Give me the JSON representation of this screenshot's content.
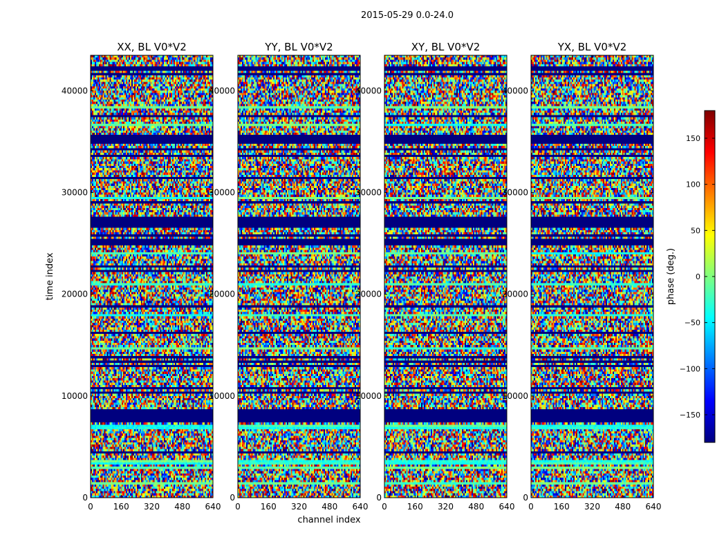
{
  "figure": {
    "suptitle": "2015-05-29 0.0-24.0",
    "xlabel": "channel index",
    "ylabel": "time index"
  },
  "colorbar": {
    "label": "phase (deg.)",
    "colormap": "jet",
    "range": [
      -180,
      180
    ],
    "ticks": [
      150,
      100,
      50,
      0,
      -50,
      -100,
      -150
    ],
    "tick_labels": [
      "150",
      "100",
      "50",
      "0",
      "−50",
      "−100",
      "−150"
    ],
    "jet_colors": [
      "#00007f",
      "#0000ff",
      "#007fff",
      "#00ffff",
      "#7fff7f",
      "#ffff00",
      "#ff7f00",
      "#ff0000",
      "#7f0000"
    ]
  },
  "chart_data": [
    {
      "type": "heatmap",
      "title": "XX, BL V0*V2",
      "xlim": [
        0,
        640
      ],
      "ylim": [
        0,
        43500
      ],
      "xticks": [
        0,
        160,
        320,
        480,
        640
      ],
      "yticks": [
        0,
        10000,
        20000,
        30000,
        40000
      ],
      "z": "phase (deg.)",
      "zlim": [
        -180,
        180
      ]
    },
    {
      "type": "heatmap",
      "title": "YY, BL V0*V2",
      "xlim": [
        0,
        640
      ],
      "ylim": [
        0,
        43500
      ],
      "xticks": [
        0,
        160,
        320,
        480,
        640
      ],
      "yticks": [
        0,
        10000,
        20000,
        30000,
        40000
      ],
      "z": "phase (deg.)",
      "zlim": [
        -180,
        180
      ]
    },
    {
      "type": "heatmap",
      "title": "XY, BL V0*V2",
      "xlim": [
        0,
        640
      ],
      "ylim": [
        0,
        43500
      ],
      "xticks": [
        0,
        160,
        320,
        480,
        640
      ],
      "yticks": [
        0,
        10000,
        20000,
        30000,
        40000
      ],
      "z": "phase (deg.)",
      "zlim": [
        -180,
        180
      ]
    },
    {
      "type": "heatmap",
      "title": "YX, BL V0*V2",
      "xlim": [
        0,
        640
      ],
      "ylim": [
        0,
        43500
      ],
      "xticks": [
        0,
        160,
        320,
        480,
        640
      ],
      "yticks": [
        0,
        10000,
        20000,
        30000,
        40000
      ],
      "z": "phase (deg.)",
      "zlim": [
        -180,
        180
      ]
    }
  ]
}
